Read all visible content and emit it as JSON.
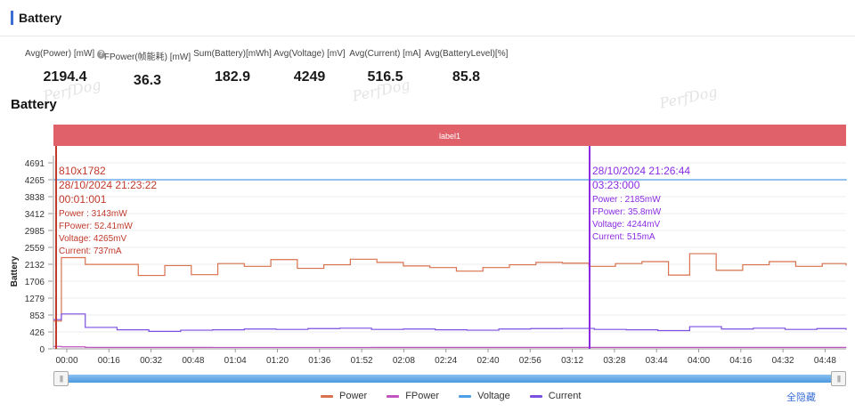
{
  "panel": {
    "title": "Battery"
  },
  "metrics": [
    {
      "label": "Avg(Power) [mW]",
      "value": "2194.4",
      "help": true
    },
    {
      "label": "FPower(帧能耗) [mW]",
      "value": "36.3"
    },
    {
      "label": "Sum(Battery)[mWh]",
      "value": "182.9"
    },
    {
      "label": "Avg(Voltage) [mV]",
      "value": "4249"
    },
    {
      "label": "Avg(Current) [mA]",
      "value": "516.5"
    },
    {
      "label": "Avg(BatteryLevel)[%]",
      "value": "85.8"
    }
  ],
  "watermark": "PerfDog",
  "chart": {
    "title": "Battery",
    "label_band": "label1",
    "y_axis_title": "Battery",
    "y_ticks": [
      "0",
      "426",
      "853",
      "1279",
      "1706",
      "2132",
      "2559",
      "2985",
      "3412",
      "3838",
      "4265",
      "4691"
    ],
    "x_ticks": [
      "00:00",
      "00:16",
      "00:32",
      "00:48",
      "01:04",
      "01:20",
      "01:36",
      "01:52",
      "02:08",
      "02:24",
      "02:40",
      "02:56",
      "03:12",
      "03:28",
      "03:44",
      "04:00",
      "04:16",
      "04:32",
      "04:48"
    ],
    "tooltip_left": {
      "lines": [
        "810x1782",
        "28/10/2024 21:23:22",
        "00:01:001"
      ],
      "details": [
        "Power   : 3143mW",
        "FPower: 52.41mW",
        "Voltage: 4265mV",
        "Current: 737mA"
      ],
      "color": "#c0392b"
    },
    "tooltip_right": {
      "lines": [
        "28/10/2024 21:26:44",
        "03:23:000"
      ],
      "details": [
        "Power   : 2185mW",
        "FPower: 35.8mW",
        "Voltage: 4244mV",
        "Current: 515mA"
      ],
      "color": "#8a2be2"
    },
    "colors": {
      "power": "#d9714f",
      "fpower": "#c154c1",
      "voltage": "#4f9ee8",
      "current": "#7b4fe0",
      "band": "#e0616a"
    }
  },
  "chart_data": {
    "type": "line",
    "x_unit": "mm:ss",
    "ylim": [
      0,
      4691
    ],
    "series": [
      {
        "name": "Power",
        "x": [
          0,
          3,
          12,
          32,
          42,
          52,
          62,
          72,
          82,
          92,
          102,
          112,
          122,
          132,
          142,
          152,
          162,
          172,
          182,
          192,
          202,
          212,
          222,
          232,
          240,
          250,
          260,
          270,
          280,
          290,
          299
        ],
        "values": [
          700,
          2300,
          2130,
          1850,
          2100,
          1870,
          2150,
          2080,
          2250,
          2030,
          2120,
          2260,
          2180,
          2090,
          2050,
          1960,
          2050,
          2120,
          2180,
          2160,
          2080,
          2150,
          2200,
          1860,
          2400,
          1980,
          2120,
          2200,
          2080,
          2150,
          2100
        ]
      },
      {
        "name": "FPower",
        "x": [
          0,
          3,
          12,
          60,
          120,
          180,
          240,
          299
        ],
        "values": [
          60,
          50,
          36,
          35,
          36,
          36,
          36,
          35
        ]
      },
      {
        "name": "Voltage",
        "x": [
          0,
          299
        ],
        "values": [
          4265,
          4244
        ]
      },
      {
        "name": "Current",
        "x": [
          0,
          3,
          12,
          24,
          36,
          48,
          60,
          72,
          84,
          96,
          108,
          120,
          132,
          144,
          156,
          168,
          180,
          192,
          204,
          216,
          228,
          240,
          252,
          264,
          276,
          288,
          299
        ],
        "values": [
          737,
          880,
          540,
          480,
          440,
          470,
          480,
          500,
          490,
          510,
          520,
          490,
          500,
          480,
          470,
          500,
          510,
          515,
          490,
          480,
          460,
          560,
          500,
          520,
          490,
          510,
          480
        ]
      }
    ]
  },
  "legend": [
    {
      "name": "Power",
      "color": "#d9714f"
    },
    {
      "name": "FPower",
      "color": "#c154c1"
    },
    {
      "name": "Voltage",
      "color": "#4f9ee8"
    },
    {
      "name": "Current",
      "color": "#7b4fe0"
    }
  ],
  "controls": {
    "hide_all": "全隐藏",
    "slider_grip": "|||"
  }
}
